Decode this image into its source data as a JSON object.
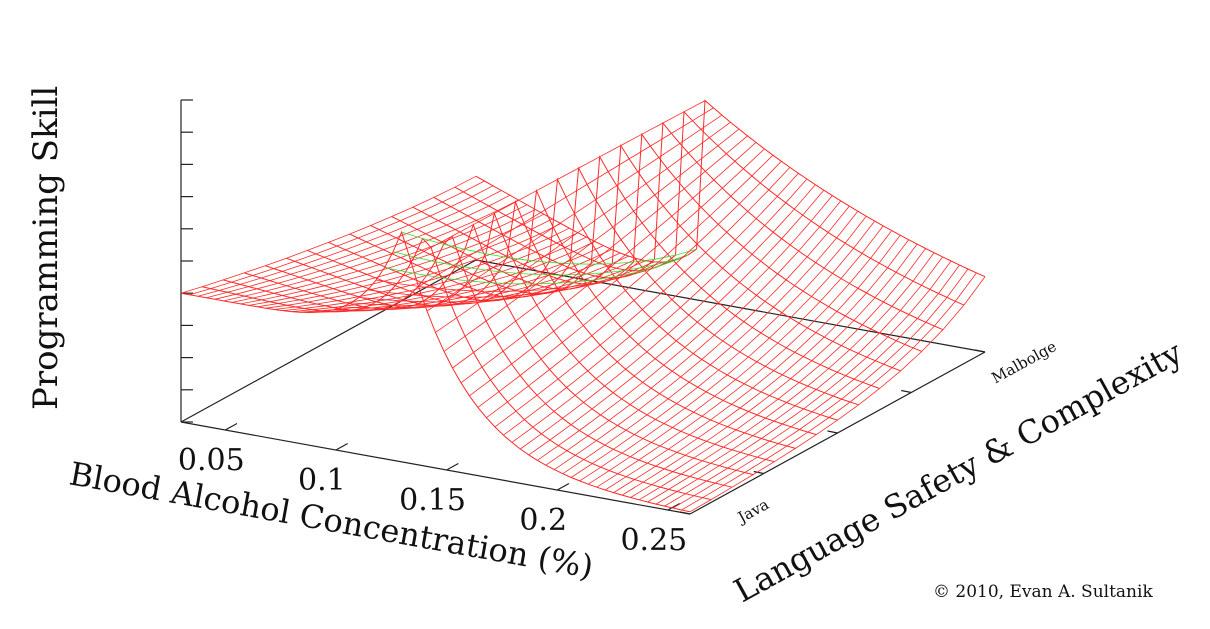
{
  "chart_data": {
    "type": "surface",
    "zlabel": "Programming Skill",
    "xlabel": "Blood Alcohol Concentration (%)",
    "ylabel": "Language Safety & Complexity",
    "x_ticks": [
      "0.05",
      "0.1",
      "0.15",
      "0.2",
      "0.25"
    ],
    "y_ticks": [
      "Java",
      "Malbolge"
    ],
    "xlim": [
      0.03,
      0.26
    ],
    "zlim": [
      0,
      1
    ],
    "z_tick_count": 10,
    "peak_x": 0.13,
    "baseline_skill": 0.4,
    "peak_skill": 0.72,
    "colors": {
      "surface": "#ff2a2a",
      "peak_band": "#33e033",
      "axis": "#222222"
    },
    "copyright": "© 2010, Evan A. Sultanik"
  }
}
